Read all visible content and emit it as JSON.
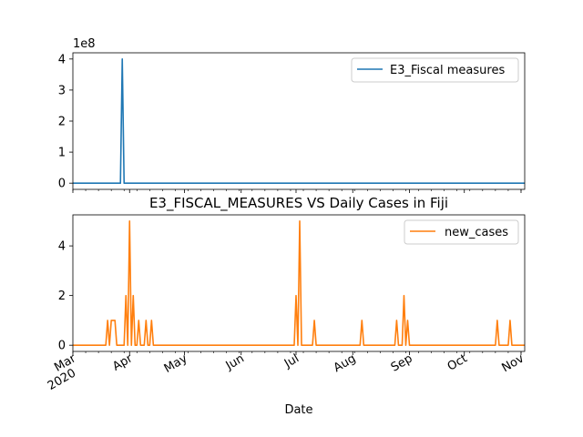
{
  "chart_data": [
    {
      "type": "line",
      "offset_text": "1e8",
      "ylim": [
        -20000000,
        420000000
      ],
      "yticks": [
        0,
        100000000,
        200000000,
        300000000,
        400000000
      ],
      "ytick_labels": [
        "0",
        "1",
        "2",
        "3",
        "4"
      ],
      "xticks_labeled": false,
      "legend": {
        "position": "upper right",
        "entries": [
          "E3_Fiscal measures"
        ]
      },
      "series": [
        {
          "name": "E3_Fiscal measures",
          "color": "#1f77b4",
          "x": [
            "2020-03-01",
            "2020-03-27",
            "2020-03-28",
            "2020-03-29",
            "2020-11-03"
          ],
          "values": [
            0,
            0,
            400000000,
            0,
            0
          ]
        }
      ]
    },
    {
      "type": "line",
      "title": "E3_FISCAL_MEASURES VS Daily Cases in Fiji",
      "xlabel": "Date",
      "ylim": [
        -0.25,
        5.25
      ],
      "yticks": [
        0,
        2,
        4
      ],
      "ytick_labels": [
        "0",
        "2",
        "4"
      ],
      "xtick_labels": [
        {
          "date": "2020-03-01",
          "label": "Mar",
          "sublabel": "2020"
        },
        {
          "date": "2020-04-01",
          "label": "Apr"
        },
        {
          "date": "2020-05-01",
          "label": "May"
        },
        {
          "date": "2020-06-01",
          "label": "Jun"
        },
        {
          "date": "2020-07-01",
          "label": "Jul"
        },
        {
          "date": "2020-08-01",
          "label": "Aug"
        },
        {
          "date": "2020-09-01",
          "label": "Sep"
        },
        {
          "date": "2020-10-01",
          "label": "Oct"
        },
        {
          "date": "2020-11-01",
          "label": "Nov"
        }
      ],
      "legend": {
        "position": "upper right",
        "entries": [
          "new_cases"
        ]
      },
      "series": [
        {
          "name": "new_cases",
          "color": "#ff7f0e",
          "x": [
            "2020-03-01",
            "2020-03-19",
            "2020-03-20",
            "2020-03-21",
            "2020-03-22",
            "2020-03-23",
            "2020-03-24",
            "2020-03-25",
            "2020-03-26",
            "2020-03-27",
            "2020-03-28",
            "2020-03-29",
            "2020-03-30",
            "2020-03-31",
            "2020-04-01",
            "2020-04-02",
            "2020-04-03",
            "2020-04-04",
            "2020-04-05",
            "2020-04-06",
            "2020-04-07",
            "2020-04-08",
            "2020-04-09",
            "2020-04-10",
            "2020-04-11",
            "2020-04-12",
            "2020-04-13",
            "2020-04-14",
            "2020-04-15",
            "2020-04-16",
            "2020-04-17",
            "2020-06-30",
            "2020-07-01",
            "2020-07-02",
            "2020-07-03",
            "2020-07-04",
            "2020-07-05",
            "2020-07-10",
            "2020-07-11",
            "2020-07-12",
            "2020-08-05",
            "2020-08-06",
            "2020-08-07",
            "2020-08-24",
            "2020-08-25",
            "2020-08-26",
            "2020-08-27",
            "2020-08-28",
            "2020-08-29",
            "2020-08-30",
            "2020-08-31",
            "2020-09-01",
            "2020-10-18",
            "2020-10-19",
            "2020-10-20",
            "2020-10-25",
            "2020-10-26",
            "2020-10-27",
            "2020-11-03"
          ],
          "values": [
            0,
            0,
            1,
            0,
            1,
            1,
            1,
            0,
            0,
            0,
            0,
            0,
            2,
            0,
            5,
            0,
            2,
            0,
            0,
            1,
            0,
            0,
            0,
            1,
            0,
            0,
            1,
            0,
            0,
            0,
            0,
            0,
            2,
            0,
            5,
            0,
            0,
            0,
            1,
            0,
            0,
            1,
            0,
            0,
            1,
            0,
            0,
            0,
            2,
            0,
            1,
            0,
            0,
            1,
            0,
            0,
            1,
            0,
            0
          ]
        }
      ]
    }
  ]
}
